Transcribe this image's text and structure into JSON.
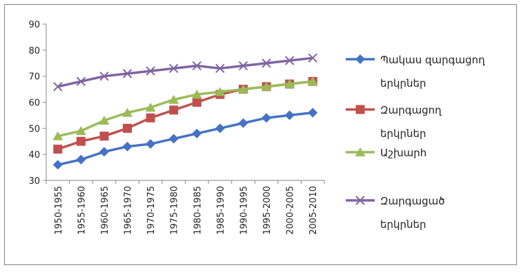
{
  "chart_data": {
    "type": "line",
    "categories": [
      "1950-1955",
      "1955-1960",
      "1960-1965",
      "1965-1970",
      "1970-1975",
      "1975-1980",
      "1980-1985",
      "1985-1990",
      "1990-1995",
      "1995-2000",
      "2000-2005",
      "2005-2010"
    ],
    "ylim": [
      30,
      90
    ],
    "yticks": [
      30,
      40,
      50,
      60,
      70,
      80,
      90
    ],
    "grid": false,
    "legend_position": "right",
    "series": [
      {
        "name": "Պակաս զարգացող երկրներ",
        "legend_lines": [
          "Պակաս զարգացող",
          "երկրներ"
        ],
        "color": "#4472C4",
        "marker": "diamond",
        "values": [
          36,
          38,
          41,
          43,
          44,
          46,
          48,
          50,
          52,
          54,
          55,
          56
        ]
      },
      {
        "name": "Զարգացող երկրներ",
        "legend_lines": [
          "Զարգացող",
          "երկրներ"
        ],
        "color": "#C0504D",
        "marker": "square",
        "values": [
          42,
          45,
          47,
          50,
          54,
          57,
          60,
          63,
          65,
          66,
          67,
          68
        ]
      },
      {
        "name": "Աշխարհ",
        "legend_lines": [
          "Աշխարհ"
        ],
        "color": "#9BBB59",
        "marker": "triangle",
        "values": [
          47,
          49,
          53,
          56,
          58,
          61,
          63,
          64,
          65,
          66,
          67,
          68
        ]
      },
      {
        "name": "Զարգացած երկրներ",
        "legend_lines": [
          "Զարգացած",
          "երկրներ"
        ],
        "color": "#8064A2",
        "marker": "x",
        "values": [
          66,
          68,
          70,
          71,
          72,
          73,
          74,
          73,
          74,
          75,
          76,
          77
        ]
      }
    ]
  }
}
